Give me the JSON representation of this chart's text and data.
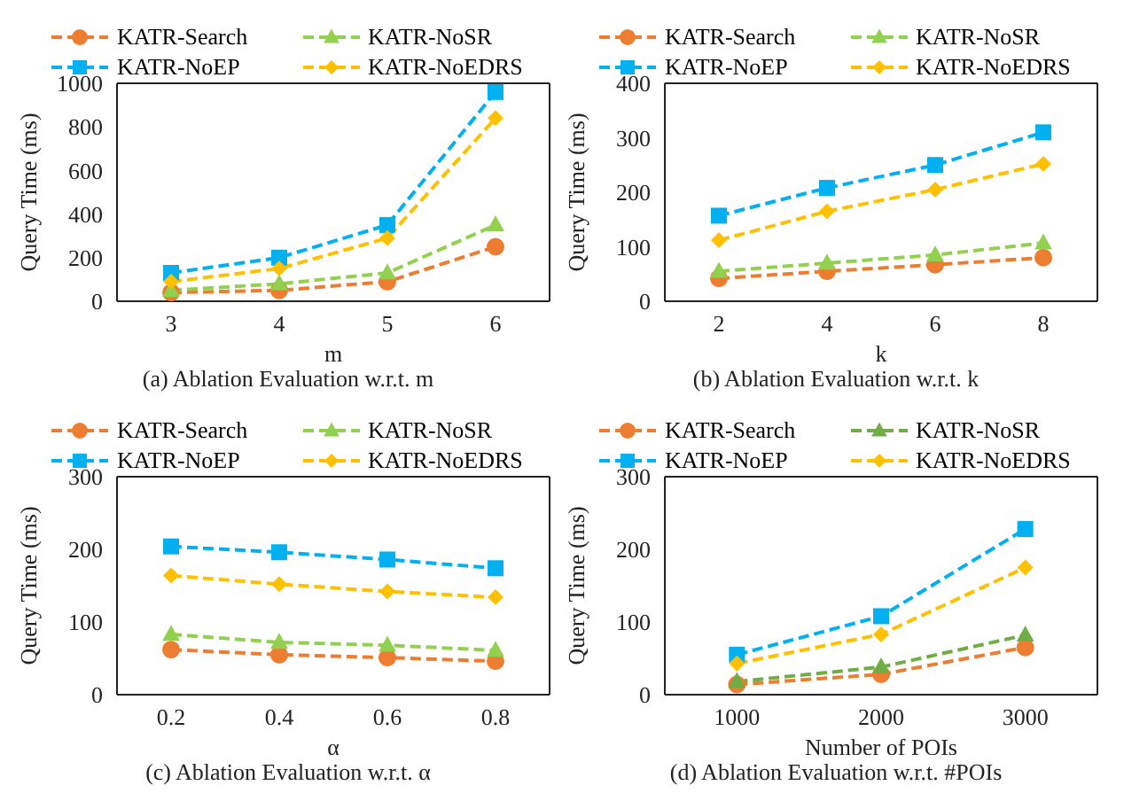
{
  "chart_data": [
    {
      "type": "line",
      "title": "(a) Ablation Evaluation w.r.t. m",
      "xlabel": "m",
      "ylabel": "Query Time (ms)",
      "categories": [
        "3",
        "4",
        "5",
        "6"
      ],
      "ylim": [
        0,
        1000
      ],
      "yticks": [
        0,
        200,
        400,
        600,
        800,
        1000
      ],
      "legend": "top",
      "grid": false,
      "line_style": "dashed",
      "series": [
        {
          "name": "KATR-Search",
          "color": "#ed7d31",
          "marker": "circle",
          "values": [
            40,
            50,
            90,
            250
          ]
        },
        {
          "name": "KATR-NoSR",
          "color": "#92d050",
          "marker": "triangle",
          "values": [
            50,
            80,
            130,
            350
          ]
        },
        {
          "name": "KATR-NoEP",
          "color": "#00b0f0",
          "marker": "square",
          "values": [
            130,
            200,
            350,
            960
          ]
        },
        {
          "name": "KATR-NoEDRS",
          "color": "#ffc000",
          "marker": "diamond",
          "values": [
            90,
            150,
            290,
            840
          ]
        }
      ]
    },
    {
      "type": "line",
      "title": "(b) Ablation Evaluation w.r.t. k",
      "xlabel": "k",
      "ylabel": "Query Time (ms)",
      "categories": [
        "2",
        "4",
        "6",
        "8"
      ],
      "ylim": [
        0,
        400
      ],
      "yticks": [
        0,
        100,
        200,
        300,
        400
      ],
      "legend": "top",
      "grid": false,
      "line_style": "dashed",
      "series": [
        {
          "name": "KATR-Search",
          "color": "#ed7d31",
          "marker": "circle",
          "values": [
            42,
            55,
            67,
            80
          ]
        },
        {
          "name": "KATR-NoSR",
          "color": "#92d050",
          "marker": "triangle",
          "values": [
            55,
            70,
            85,
            107
          ]
        },
        {
          "name": "KATR-NoEP",
          "color": "#00b0f0",
          "marker": "square",
          "values": [
            157,
            208,
            250,
            310
          ]
        },
        {
          "name": "KATR-NoEDRS",
          "color": "#ffc000",
          "marker": "diamond",
          "values": [
            112,
            165,
            205,
            252
          ]
        }
      ]
    },
    {
      "type": "line",
      "title": "(c) Ablation Evaluation w.r.t. α",
      "xlabel": "α",
      "ylabel": "Query Time (ms)",
      "categories": [
        "0.2",
        "0.4",
        "0.6",
        "0.8"
      ],
      "ylim": [
        0,
        300
      ],
      "yticks": [
        0,
        100,
        200,
        300
      ],
      "legend": "top",
      "grid": false,
      "line_style": "dashed",
      "series": [
        {
          "name": "KATR-Search",
          "color": "#ed7d31",
          "marker": "circle",
          "values": [
            62,
            55,
            51,
            46
          ]
        },
        {
          "name": "KATR-NoSR",
          "color": "#92d050",
          "marker": "triangle",
          "values": [
            83,
            72,
            68,
            61
          ]
        },
        {
          "name": "KATR-NoEP",
          "color": "#00b0f0",
          "marker": "square",
          "values": [
            204,
            196,
            186,
            174
          ]
        },
        {
          "name": "KATR-NoEDRS",
          "color": "#ffc000",
          "marker": "diamond",
          "values": [
            164,
            152,
            142,
            134
          ]
        }
      ]
    },
    {
      "type": "line",
      "title": "(d) Ablation Evaluation w.r.t. #POIs",
      "xlabel": "Number of POIs",
      "ylabel": "Query Time (ms)",
      "categories": [
        "1000",
        "2000",
        "3000"
      ],
      "ylim": [
        0,
        300
      ],
      "yticks": [
        0,
        100,
        200,
        300
      ],
      "legend": "top",
      "grid": false,
      "line_style": "dashed",
      "series": [
        {
          "name": "KATR-Search",
          "color": "#ed7d31",
          "marker": "circle",
          "values": [
            14,
            28,
            65
          ]
        },
        {
          "name": "KATR-NoSR",
          "color": "#70ad47",
          "marker": "triangle",
          "values": [
            18,
            38,
            82
          ]
        },
        {
          "name": "KATR-NoEP",
          "color": "#00b0f0",
          "marker": "square",
          "values": [
            55,
            108,
            228
          ]
        },
        {
          "name": "KATR-NoEDRS",
          "color": "#ffc000",
          "marker": "diamond",
          "values": [
            43,
            83,
            175
          ]
        }
      ]
    }
  ]
}
